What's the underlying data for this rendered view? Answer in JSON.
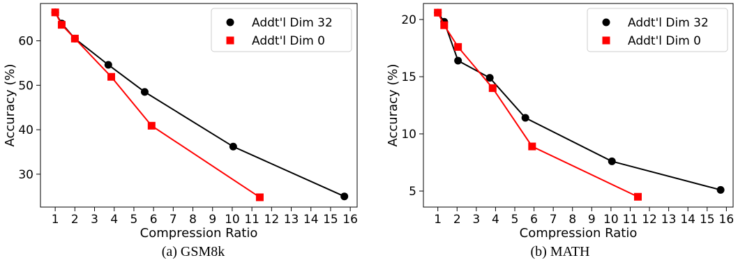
{
  "chart_data": [
    {
      "type": "line",
      "caption": "(a) GSM8k",
      "xlabel": "Compression Ratio",
      "ylabel": "Accuracy (%)",
      "xticks": [
        1,
        2,
        3,
        4,
        5,
        6,
        7,
        8,
        9,
        10,
        11,
        12,
        13,
        14,
        15,
        16
      ],
      "yticks": [
        30,
        40,
        50,
        60
      ],
      "xlim": [
        0.25,
        16.35
      ],
      "ylim": [
        22.6,
        68.4
      ],
      "grid": false,
      "legend_position": "top-right",
      "series": [
        {
          "name": "Addt'l Dim 32",
          "color": "#000000",
          "marker": "circle",
          "x": [
            1.0,
            1.33,
            2.0,
            3.7,
            5.55,
            10.05,
            15.7
          ],
          "y": [
            66.4,
            63.9,
            60.5,
            54.6,
            48.5,
            36.2,
            25.0
          ]
        },
        {
          "name": "Addt'l Dim 0",
          "color": "#ff0000",
          "marker": "square",
          "x": [
            1.0,
            1.33,
            2.0,
            3.85,
            5.9,
            11.4
          ],
          "y": [
            66.4,
            63.6,
            60.5,
            51.9,
            40.9,
            24.8
          ]
        }
      ]
    },
    {
      "type": "line",
      "caption": "(b) MATH",
      "xlabel": "Compression Ratio",
      "ylabel": "Accuracy (%)",
      "xticks": [
        1,
        2,
        3,
        4,
        5,
        6,
        7,
        8,
        9,
        10,
        11,
        12,
        13,
        14,
        15,
        16
      ],
      "yticks": [
        5,
        10,
        15,
        20
      ],
      "xlim": [
        0.25,
        16.35
      ],
      "ylim": [
        3.6,
        21.4
      ],
      "grid": false,
      "legend_position": "top-right",
      "series": [
        {
          "name": "Addt'l Dim 32",
          "color": "#000000",
          "marker": "circle",
          "x": [
            1.0,
            1.33,
            2.05,
            3.7,
            5.55,
            10.05,
            15.7
          ],
          "y": [
            20.6,
            19.8,
            16.4,
            14.9,
            11.4,
            7.6,
            5.1
          ]
        },
        {
          "name": "Addt'l Dim 0",
          "color": "#ff0000",
          "marker": "square",
          "x": [
            1.0,
            1.33,
            2.05,
            3.85,
            5.9,
            11.4
          ],
          "y": [
            20.6,
            19.5,
            17.6,
            14.0,
            8.9,
            4.5
          ]
        }
      ]
    }
  ]
}
